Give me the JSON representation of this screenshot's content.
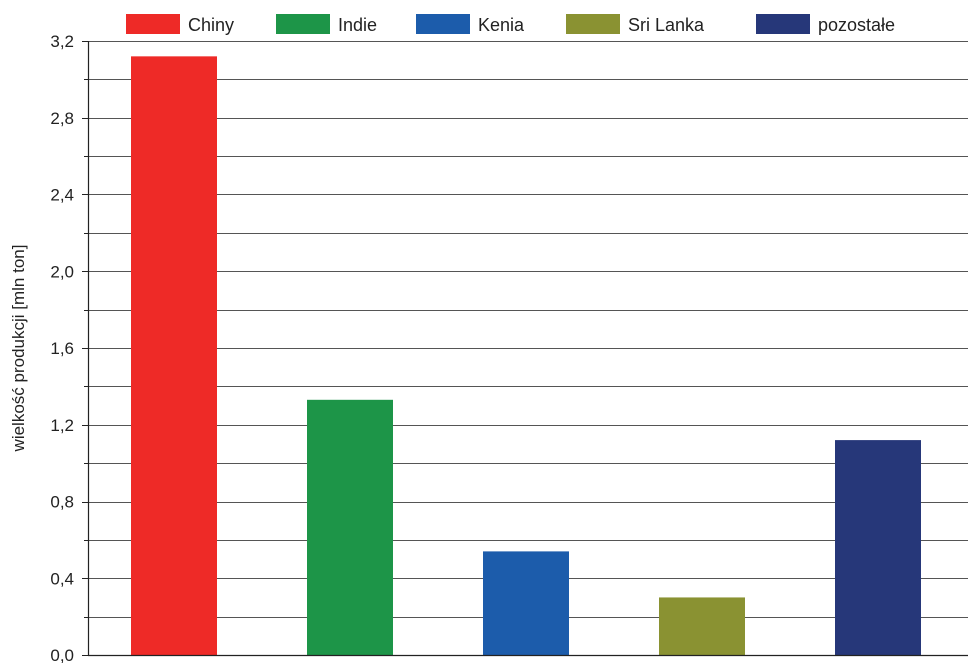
{
  "chart_data": {
    "type": "bar",
    "categories": [
      "Chiny",
      "Indie",
      "Kenia",
      "Sri Lanka",
      "pozostałe"
    ],
    "values": [
      3.12,
      1.33,
      0.54,
      0.3,
      1.12
    ],
    "colors": [
      "#ee2a27",
      "#1d9548",
      "#1c5cab",
      "#8a9232",
      "#263779"
    ],
    "legend": [
      "Chiny",
      "Indie",
      "Kenia",
      "Sri Lanka",
      "pozostałe"
    ],
    "legend_position": "top",
    "xlabel": "",
    "ylabel": "wielkość produkcji [mln ton]",
    "ylim": [
      0,
      3.2
    ],
    "yticks": [
      "0,0",
      "0,4",
      "0,8",
      "1,2",
      "1,6",
      "2,0",
      "2,4",
      "2,8",
      "3,2"
    ],
    "grid": true
  }
}
